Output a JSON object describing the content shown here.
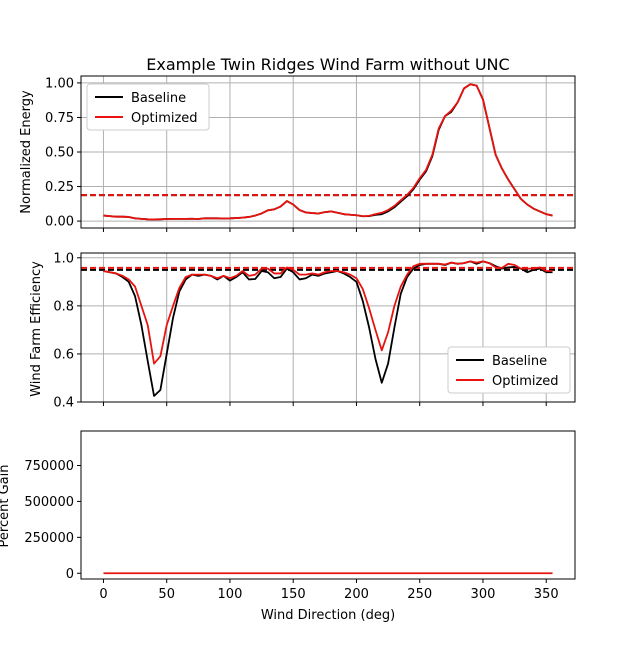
{
  "figure": {
    "title": "Example Twin Ridges Wind Farm without UNC",
    "xlabel": "Wind Direction (deg)",
    "xticks": [
      0,
      50,
      100,
      150,
      200,
      250,
      300,
      350
    ]
  },
  "colors": {
    "baseline": "#000000",
    "optimized": "#e8130f",
    "grid": "#b0b0b0"
  },
  "chart_data": [
    {
      "type": "line",
      "ylabel": "Normalized Energy",
      "xlim": [
        -17.75,
        372.75
      ],
      "ylim": [
        -0.05,
        1.05
      ],
      "yticks": [
        0.0,
        0.25,
        0.5,
        0.75,
        1.0
      ],
      "ytick_labels": [
        "0.00",
        "0.25",
        "0.50",
        "0.75",
        "1.00"
      ],
      "grid": true,
      "legend": {
        "position": "top-left",
        "entries": [
          "Baseline",
          "Optimized"
        ]
      },
      "x": [
        0,
        5,
        10,
        15,
        20,
        25,
        30,
        35,
        40,
        45,
        50,
        55,
        60,
        65,
        70,
        75,
        80,
        85,
        90,
        95,
        100,
        105,
        110,
        115,
        120,
        125,
        130,
        135,
        140,
        145,
        150,
        155,
        160,
        165,
        170,
        175,
        180,
        185,
        190,
        195,
        200,
        205,
        210,
        215,
        220,
        225,
        230,
        235,
        240,
        245,
        250,
        255,
        260,
        265,
        270,
        275,
        280,
        285,
        290,
        295,
        300,
        305,
        310,
        315,
        320,
        325,
        330,
        335,
        340,
        345,
        350,
        355
      ],
      "series": [
        {
          "name": "Baseline",
          "values": [
            0.04,
            0.036,
            0.032,
            0.032,
            0.03,
            0.02,
            0.016,
            0.013,
            0.012,
            0.013,
            0.015,
            0.016,
            0.016,
            0.016,
            0.017,
            0.015,
            0.02,
            0.02,
            0.02,
            0.019,
            0.02,
            0.022,
            0.025,
            0.03,
            0.04,
            0.055,
            0.078,
            0.085,
            0.105,
            0.145,
            0.12,
            0.08,
            0.062,
            0.058,
            0.055,
            0.065,
            0.07,
            0.06,
            0.05,
            0.046,
            0.042,
            0.035,
            0.036,
            0.045,
            0.05,
            0.07,
            0.1,
            0.14,
            0.18,
            0.23,
            0.3,
            0.36,
            0.47,
            0.66,
            0.76,
            0.79,
            0.86,
            0.96,
            0.99,
            0.98,
            0.88,
            0.68,
            0.48,
            0.38,
            0.3,
            0.23,
            0.16,
            0.12,
            0.09,
            0.07,
            0.05,
            0.04
          ]
        },
        {
          "name": "Optimized",
          "values": [
            0.04,
            0.036,
            0.032,
            0.032,
            0.03,
            0.02,
            0.016,
            0.013,
            0.012,
            0.013,
            0.015,
            0.016,
            0.016,
            0.016,
            0.017,
            0.015,
            0.02,
            0.02,
            0.02,
            0.019,
            0.02,
            0.022,
            0.025,
            0.03,
            0.04,
            0.055,
            0.078,
            0.085,
            0.105,
            0.145,
            0.12,
            0.08,
            0.062,
            0.058,
            0.055,
            0.065,
            0.07,
            0.06,
            0.05,
            0.046,
            0.042,
            0.035,
            0.038,
            0.05,
            0.06,
            0.08,
            0.11,
            0.15,
            0.19,
            0.24,
            0.31,
            0.37,
            0.48,
            0.67,
            0.76,
            0.8,
            0.86,
            0.96,
            0.99,
            0.98,
            0.88,
            0.68,
            0.48,
            0.38,
            0.3,
            0.23,
            0.16,
            0.12,
            0.09,
            0.07,
            0.05,
            0.04
          ]
        }
      ],
      "reference_lines": [
        {
          "series": "Baseline",
          "y": 0.188
        },
        {
          "series": "Optimized",
          "y": 0.188
        }
      ]
    },
    {
      "type": "line",
      "ylabel": "Wind Farm Efficiency",
      "xlim": [
        -17.75,
        372.75
      ],
      "ylim": [
        0.4,
        1.02
      ],
      "yticks": [
        0.4,
        0.6,
        0.8,
        1.0
      ],
      "ytick_labels": [
        "0.4",
        "0.6",
        "0.8",
        "1.0"
      ],
      "grid": true,
      "legend": {
        "position": "bottom-right",
        "entries": [
          "Baseline",
          "Optimized"
        ]
      },
      "x": [
        0,
        5,
        10,
        15,
        20,
        25,
        30,
        35,
        40,
        45,
        50,
        55,
        60,
        65,
        70,
        75,
        80,
        85,
        90,
        95,
        100,
        105,
        110,
        115,
        120,
        125,
        130,
        135,
        140,
        145,
        150,
        155,
        160,
        165,
        170,
        175,
        180,
        185,
        190,
        195,
        200,
        205,
        210,
        215,
        220,
        225,
        230,
        235,
        240,
        245,
        250,
        255,
        260,
        265,
        270,
        275,
        280,
        285,
        290,
        295,
        300,
        305,
        310,
        315,
        320,
        325,
        330,
        335,
        340,
        345,
        350,
        355
      ],
      "series": [
        {
          "name": "Baseline",
          "values": [
            0.945,
            0.94,
            0.935,
            0.92,
            0.9,
            0.84,
            0.72,
            0.57,
            0.425,
            0.45,
            0.6,
            0.75,
            0.86,
            0.91,
            0.93,
            0.925,
            0.93,
            0.925,
            0.91,
            0.925,
            0.905,
            0.92,
            0.94,
            0.91,
            0.912,
            0.945,
            0.94,
            0.915,
            0.92,
            0.955,
            0.94,
            0.91,
            0.915,
            0.93,
            0.925,
            0.935,
            0.94,
            0.945,
            0.935,
            0.92,
            0.9,
            0.82,
            0.71,
            0.58,
            0.48,
            0.56,
            0.71,
            0.85,
            0.92,
            0.955,
            0.97,
            0.975,
            0.975,
            0.975,
            0.97,
            0.98,
            0.975,
            0.978,
            0.985,
            0.975,
            0.985,
            0.978,
            0.965,
            0.955,
            0.96,
            0.962,
            0.955,
            0.94,
            0.95,
            0.955,
            0.94,
            0.94
          ]
        },
        {
          "name": "Optimized",
          "values": [
            0.945,
            0.94,
            0.935,
            0.925,
            0.91,
            0.88,
            0.8,
            0.72,
            0.56,
            0.59,
            0.72,
            0.8,
            0.875,
            0.92,
            0.93,
            0.93,
            0.93,
            0.925,
            0.915,
            0.925,
            0.915,
            0.925,
            0.945,
            0.925,
            0.93,
            0.955,
            0.955,
            0.935,
            0.935,
            0.96,
            0.95,
            0.93,
            0.93,
            0.935,
            0.93,
            0.94,
            0.945,
            0.945,
            0.94,
            0.93,
            0.915,
            0.87,
            0.79,
            0.7,
            0.615,
            0.69,
            0.8,
            0.88,
            0.93,
            0.965,
            0.975,
            0.975,
            0.975,
            0.975,
            0.972,
            0.98,
            0.975,
            0.978,
            0.985,
            0.98,
            0.985,
            0.978,
            0.96,
            0.958,
            0.975,
            0.97,
            0.955,
            0.955,
            0.955,
            0.96,
            0.945,
            0.945
          ]
        }
      ],
      "reference_lines": [
        {
          "series": "Baseline",
          "y": 0.95
        },
        {
          "series": "Optimized",
          "y": 0.958
        }
      ]
    },
    {
      "type": "line",
      "ylabel": "Percent Gain",
      "xlim": [
        -17.75,
        372.75
      ],
      "ylim": [
        -40000,
        990000
      ],
      "yticks": [
        0,
        250000,
        500000,
        750000
      ],
      "ytick_labels": [
        "0",
        "250000",
        "500000",
        "750000"
      ],
      "grid": false,
      "x": [
        0,
        355
      ],
      "series": [
        {
          "values": [
            0,
            0
          ]
        }
      ]
    }
  ]
}
